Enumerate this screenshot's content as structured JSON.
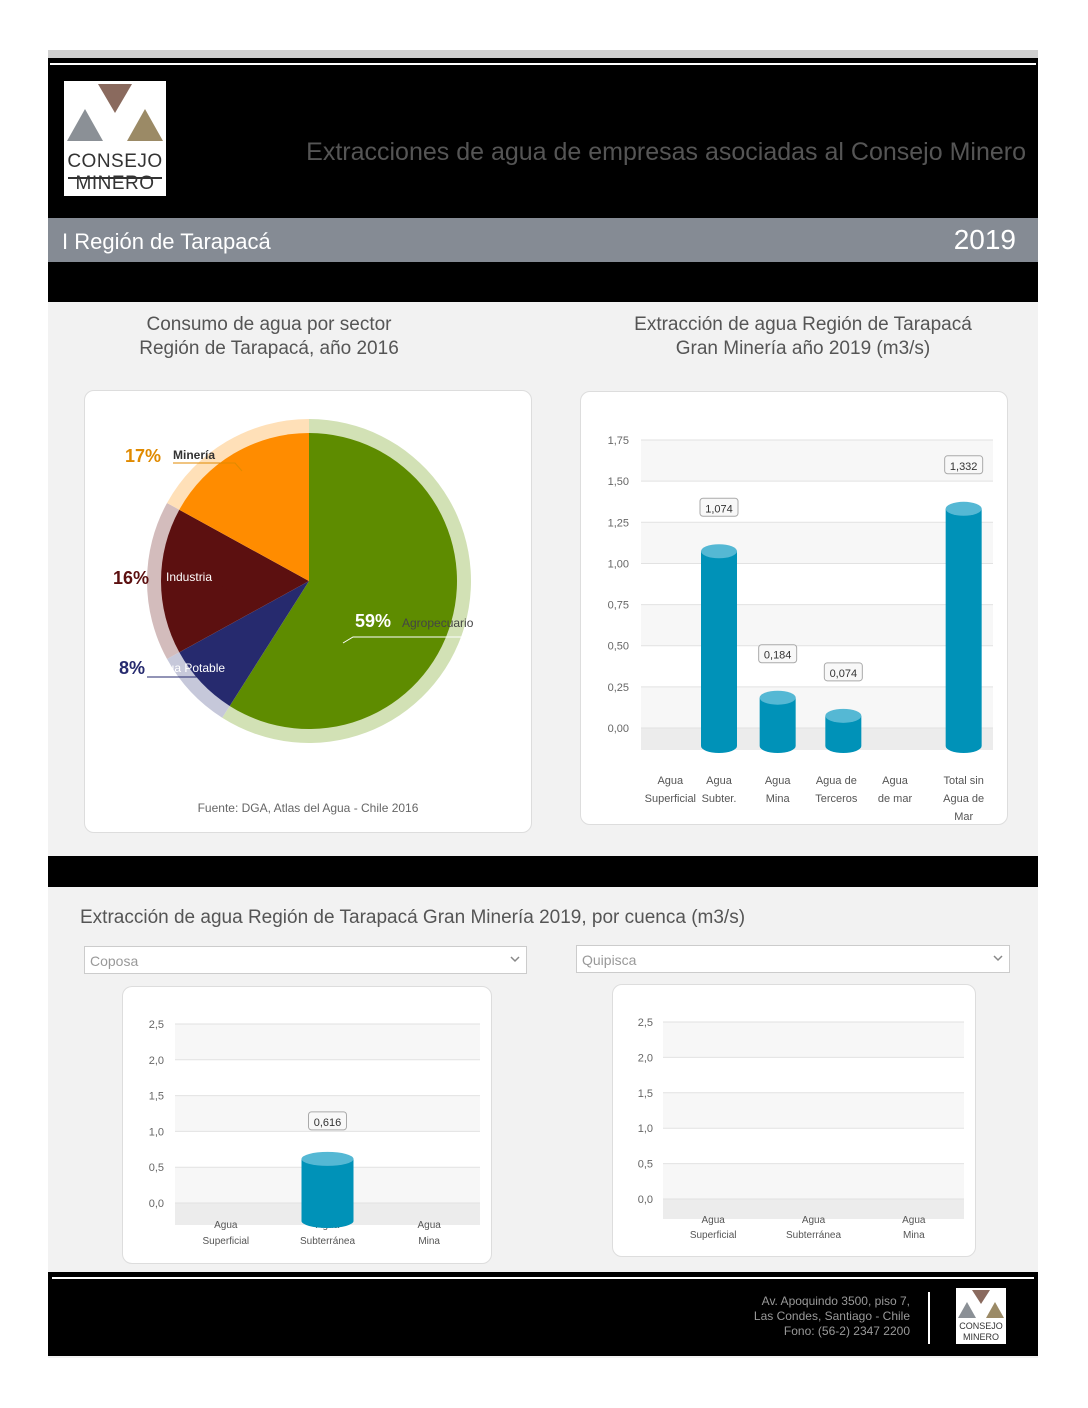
{
  "header": {
    "logo": {
      "line1": "CONSEJO",
      "line2": "MINERO"
    },
    "title": "Extracciones de agua de empresas asociadas al Consejo Minero"
  },
  "region": {
    "name": "I Región de Tarapacá",
    "year": "2019"
  },
  "pie_section": {
    "title_line1": "Consumo de agua por sector",
    "title_line2": "Región de Tarapacá, año 2016",
    "source": "Fuente: DGA, Atlas del Agua - Chile 2016"
  },
  "bar_section": {
    "title_line1": "Extracción de agua Región de Tarapacá",
    "title_line2": "Gran Minería año 2019 (m3/s)"
  },
  "basin_section": {
    "title": "Extracción de agua Región de Tarapacá Gran Minería 2019, por cuenca (m3/s)",
    "left_select": "Coposa",
    "right_select": "Quipisca"
  },
  "footer": {
    "address_line1": "Av. Apoquindo 3500, piso 7,",
    "address_line2": "Las Condes, Santiago - Chile",
    "address_line3": "Fono: (56-2) 2347 2200",
    "logo": {
      "line1": "CONSEJO",
      "line2": "MINERO"
    }
  },
  "chart_data": [
    {
      "type": "pie",
      "slices": [
        {
          "pct": "59%",
          "label": "Agropecuario",
          "value": 59,
          "color": "#5e8c00",
          "ring": "#d2e1b5",
          "labelcolor": "#ffffff"
        },
        {
          "pct": "8%",
          "label": "Agua Potable",
          "value": 8,
          "color": "#262a6e",
          "ring": "#c6c8da",
          "labelcolor": "#262a6e"
        },
        {
          "pct": "16%",
          "label": "Industria",
          "value": 16,
          "color": "#5c1010",
          "ring": "#d3bcbc",
          "labelcolor": "#5c1010"
        },
        {
          "pct": "17%",
          "label": "Minería",
          "value": 17,
          "color": "#ff8c00",
          "ring": "#ffe0b8",
          "labelcolor": "#e08a00"
        }
      ]
    },
    {
      "type": "bar",
      "categories": [
        [
          "Agua",
          "Superficial"
        ],
        [
          "Agua",
          "Subter."
        ],
        [
          "Agua",
          "Mina"
        ],
        [
          "Agua de",
          "Terceros"
        ],
        [
          "Agua",
          "de mar"
        ],
        [
          "Total sin",
          "Agua de",
          "Mar"
        ]
      ],
      "values": [
        null,
        1.074,
        0.184,
        0.074,
        null,
        1.332
      ],
      "data_labels": [
        "",
        "1,074",
        "0,184",
        "0,074",
        "",
        "1,332"
      ],
      "yticks": [
        "0,00",
        "0,25",
        "0,50",
        "0,75",
        "1,00",
        "1,25",
        "1,50",
        "1,75"
      ],
      "ylim": [
        0,
        1.75
      ],
      "color": "#0092b8"
    },
    {
      "type": "bar",
      "categories": [
        [
          "Agua",
          "Superficial"
        ],
        [
          "Agua",
          "Subterránea"
        ],
        [
          "Agua",
          "Mina"
        ]
      ],
      "values": [
        null,
        0.616,
        null
      ],
      "data_labels": [
        "",
        "0,616",
        ""
      ],
      "yticks": [
        "0,0",
        "0,5",
        "1,0",
        "1,5",
        "2,0",
        "2,5"
      ],
      "ylim": [
        0,
        2.5
      ],
      "color": "#0092b8"
    },
    {
      "type": "bar",
      "categories": [
        [
          "Agua",
          "Superficial"
        ],
        [
          "Agua",
          "Subterránea"
        ],
        [
          "Agua",
          "Mina"
        ]
      ],
      "values": [
        null,
        null,
        null
      ],
      "data_labels": [
        "",
        "",
        ""
      ],
      "yticks": [
        "0,0",
        "0,5",
        "1,0",
        "1,5",
        "2,0",
        "2,5"
      ],
      "ylim": [
        0,
        2.5
      ],
      "color": "#0092b8"
    }
  ]
}
